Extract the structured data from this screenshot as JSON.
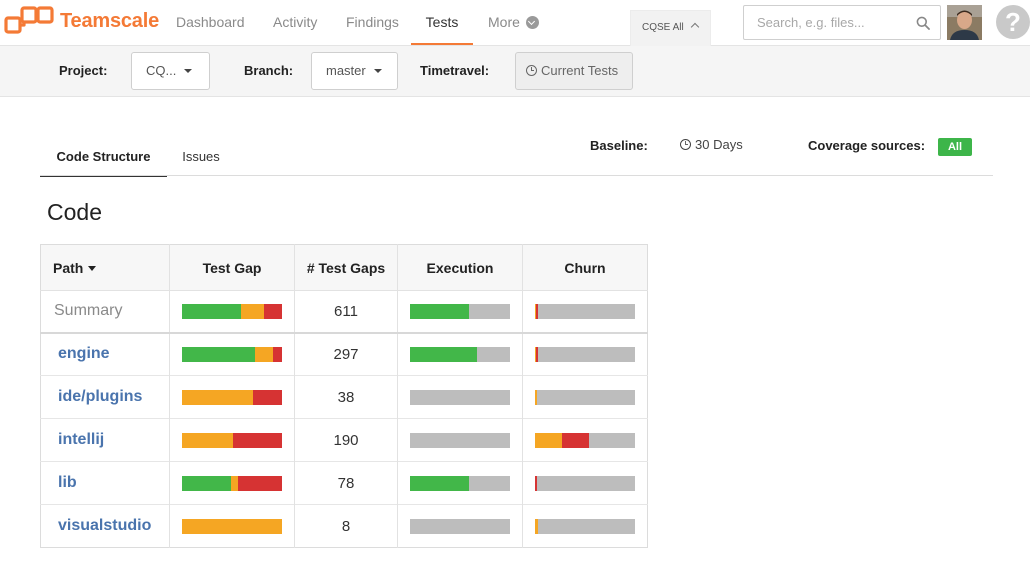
{
  "app": {
    "name": "Teamscale"
  },
  "colors": {
    "brand": "#f47a36",
    "good": "#42b749",
    "warning": "#f5a623",
    "bad": "#d63333",
    "neutral": "#bdbdbd",
    "link": "#4a74ad"
  },
  "nav": {
    "items": [
      {
        "label": "Dashboard"
      },
      {
        "label": "Activity"
      },
      {
        "label": "Findings"
      },
      {
        "label": "Tests",
        "active": true
      },
      {
        "label": "More"
      }
    ],
    "project_tab": "CQSE All",
    "search_placeholder": "Search, e.g. files...",
    "help": "?"
  },
  "filters": {
    "project_label": "Project:",
    "project_value": "CQ...",
    "branch_label": "Branch:",
    "branch_value": "master",
    "timetravel_label": "Timetravel:",
    "timetravel_value": "Current Tests"
  },
  "tabs": [
    {
      "label": "Code Structure",
      "active": true
    },
    {
      "label": "Issues",
      "active": false
    }
  ],
  "baseline": {
    "label": "Baseline:",
    "value": "30 Days"
  },
  "coverage": {
    "label": "Coverage sources:",
    "value": "All"
  },
  "section_title": "Code",
  "table": {
    "headers": {
      "path": "Path",
      "test_gap": "Test Gap",
      "gaps": "# Test Gaps",
      "execution": "Execution",
      "churn": "Churn"
    },
    "rows": [
      {
        "name": "Summary",
        "summary": true,
        "test_gap": [
          0.59,
          0.23,
          0.18
        ],
        "gaps": "611",
        "execution": [
          0.59,
          0.41
        ],
        "churn": [
          0.01,
          0.02,
          0.97
        ]
      },
      {
        "name": "engine",
        "test_gap": [
          0.73,
          0.18,
          0.09
        ],
        "gaps": "297",
        "execution": [
          0.67,
          0.33
        ],
        "churn": [
          0.01,
          0.02,
          0.97
        ]
      },
      {
        "name": "ide/plugins",
        "test_gap": [
          0.0,
          0.71,
          0.29
        ],
        "gaps": "38",
        "execution": [
          0.0,
          1.0
        ],
        "churn": [
          0.02,
          0.0,
          0.98
        ]
      },
      {
        "name": "intellij",
        "test_gap": [
          0.0,
          0.51,
          0.49
        ],
        "gaps": "190",
        "execution": [
          0.0,
          1.0
        ],
        "churn": [
          0.27,
          0.27,
          0.46
        ]
      },
      {
        "name": "lib",
        "test_gap": [
          0.49,
          0.07,
          0.44
        ],
        "gaps": "78",
        "execution": [
          0.59,
          0.41
        ],
        "churn": [
          0.0,
          0.02,
          0.98
        ]
      },
      {
        "name": "visualstudio",
        "test_gap": [
          0.0,
          1.0,
          0.0
        ],
        "gaps": "8",
        "execution": [
          0.0,
          1.0
        ],
        "churn": [
          0.03,
          0.0,
          0.97
        ]
      }
    ]
  }
}
